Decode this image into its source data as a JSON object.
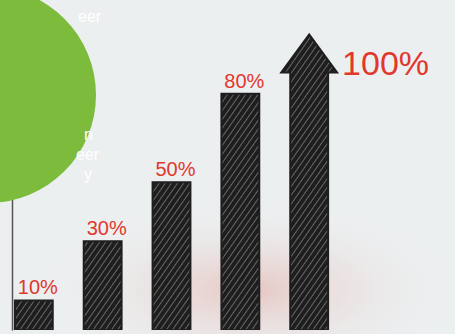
{
  "chart_data": {
    "type": "bar",
    "categories": [
      null,
      null,
      null,
      null,
      null
    ],
    "values": [
      10,
      30,
      50,
      80,
      100
    ],
    "value_labels": [
      "10%",
      "30%",
      "50%",
      "80%",
      "100%"
    ],
    "data_labels": true,
    "color": "#1e1e1e",
    "ylim": [
      0,
      110
    ],
    "yticks": [],
    "tick_labels": false,
    "annotations": [
      "eer",
      "n",
      "eer",
      "y"
    ]
  }
}
